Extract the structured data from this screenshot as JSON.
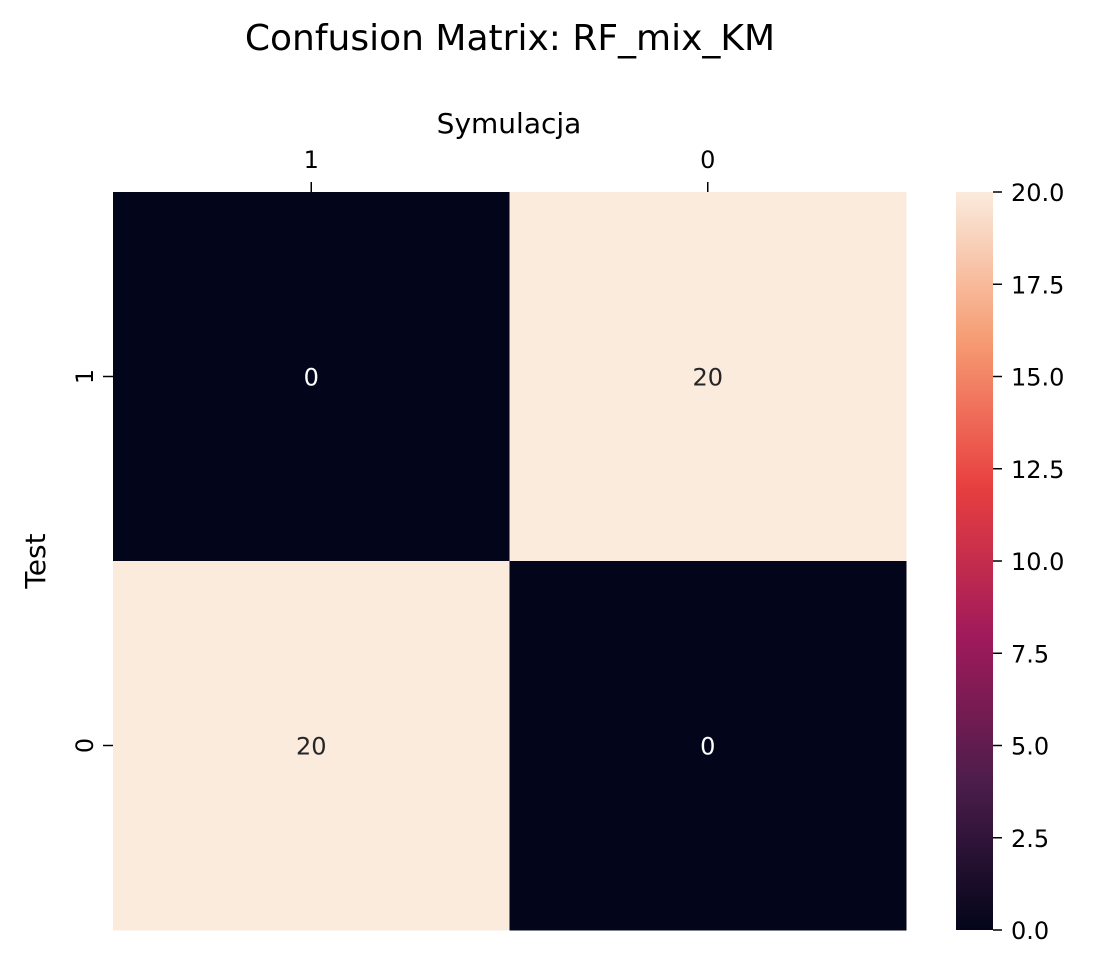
{
  "chart_data": {
    "type": "heatmap",
    "title": "Confusion Matrix: RF_mix_KM",
    "xlabel": "Symulacja",
    "ylabel": "Test",
    "x_categories": [
      "1",
      "0"
    ],
    "y_categories": [
      "1",
      "0"
    ],
    "values": [
      [
        0,
        20
      ],
      [
        20,
        0
      ]
    ],
    "annotations": [
      [
        "0",
        "20"
      ],
      [
        "20",
        "0"
      ]
    ],
    "x_axis_position": "top",
    "colorbar": {
      "min": 0.0,
      "max": 20.0,
      "ticks": [
        0.0,
        2.5,
        5.0,
        7.5,
        10.0,
        12.5,
        15.0,
        17.5,
        20.0
      ],
      "tick_labels": [
        "0.0",
        "2.5",
        "5.0",
        "7.5",
        "10.0",
        "12.5",
        "15.0",
        "17.5",
        "20.0"
      ]
    },
    "colormap": [
      "#03051a",
      "#4c1d4b",
      "#a11a5b",
      "#e83f3f",
      "#f69c73",
      "#faebdd"
    ],
    "grid": false
  }
}
